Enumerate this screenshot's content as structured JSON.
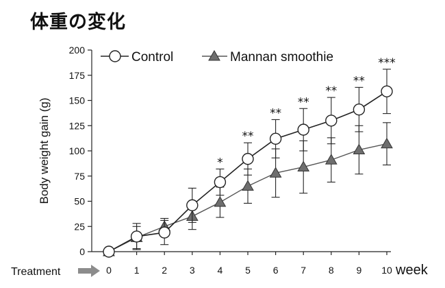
{
  "page_title": "体重の変化",
  "chart_data": {
    "type": "line",
    "title": "",
    "xlabel": "week",
    "ylabel": "Body weight gain (g)",
    "xlim": [
      0,
      10
    ],
    "ylim": [
      0,
      200
    ],
    "x_ticks": [
      0,
      1,
      2,
      3,
      4,
      5,
      6,
      7,
      8,
      9,
      10
    ],
    "y_ticks": [
      0,
      25,
      50,
      75,
      100,
      125,
      150,
      175,
      200
    ],
    "x_unit_label": "week",
    "treatment_label": "Treatment",
    "legend_position": "top",
    "grid": false,
    "series": [
      {
        "name": "Control",
        "marker": "circle-open",
        "x": [
          0,
          1,
          2,
          3,
          4,
          5,
          6,
          7,
          8,
          9,
          10
        ],
        "values": [
          0,
          15,
          19,
          46,
          69,
          92,
          112,
          121,
          130,
          141,
          159
        ],
        "error": [
          2,
          13,
          12,
          17,
          13,
          16,
          19,
          21,
          23,
          22,
          22
        ]
      },
      {
        "name": "Mannan smoothie",
        "marker": "triangle-filled",
        "x": [
          0,
          1,
          2,
          3,
          4,
          5,
          6,
          7,
          8,
          9,
          10
        ],
        "values": [
          0,
          14,
          25,
          35,
          49,
          65,
          78,
          84,
          91,
          101,
          107
        ],
        "error": [
          2,
          11,
          8,
          13,
          15,
          17,
          24,
          26,
          22,
          24,
          21
        ]
      }
    ],
    "significance": [
      {
        "x": 4,
        "label": "*"
      },
      {
        "x": 5,
        "label": "**"
      },
      {
        "x": 6,
        "label": "**"
      },
      {
        "x": 7,
        "label": "**"
      },
      {
        "x": 8,
        "label": "**"
      },
      {
        "x": 9,
        "label": "**"
      },
      {
        "x": 10,
        "label": "***"
      }
    ],
    "colors": {
      "control_fill": "#ffffff",
      "mannan_fill": "#6e6e6e",
      "line": "#222222",
      "mannan_line": "#555555",
      "arrow": "#8c8c8c"
    }
  }
}
